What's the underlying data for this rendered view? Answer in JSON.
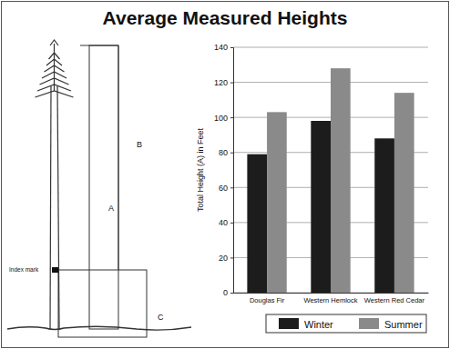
{
  "chart_data": {
    "type": "bar",
    "title": "Average Measured Heights",
    "y_label": "Total Height (A) in Feet",
    "categories": [
      "Douglas Fir",
      "Western Hemlock",
      "Western Red Cedar"
    ],
    "series": [
      {
        "name": "Winter",
        "color": "#1c1c1c",
        "values": [
          79,
          98,
          88
        ]
      },
      {
        "name": "Summer",
        "color": "#8a8a8a",
        "values": [
          103,
          128,
          114
        ]
      }
    ],
    "ylim": [
      0,
      140
    ],
    "yticks": [
      0,
      20,
      40,
      60,
      80,
      100,
      120,
      140
    ],
    "grid": true,
    "legend": "bottom",
    "annotations": [
      "A",
      "B",
      "C",
      "Index mark"
    ]
  }
}
